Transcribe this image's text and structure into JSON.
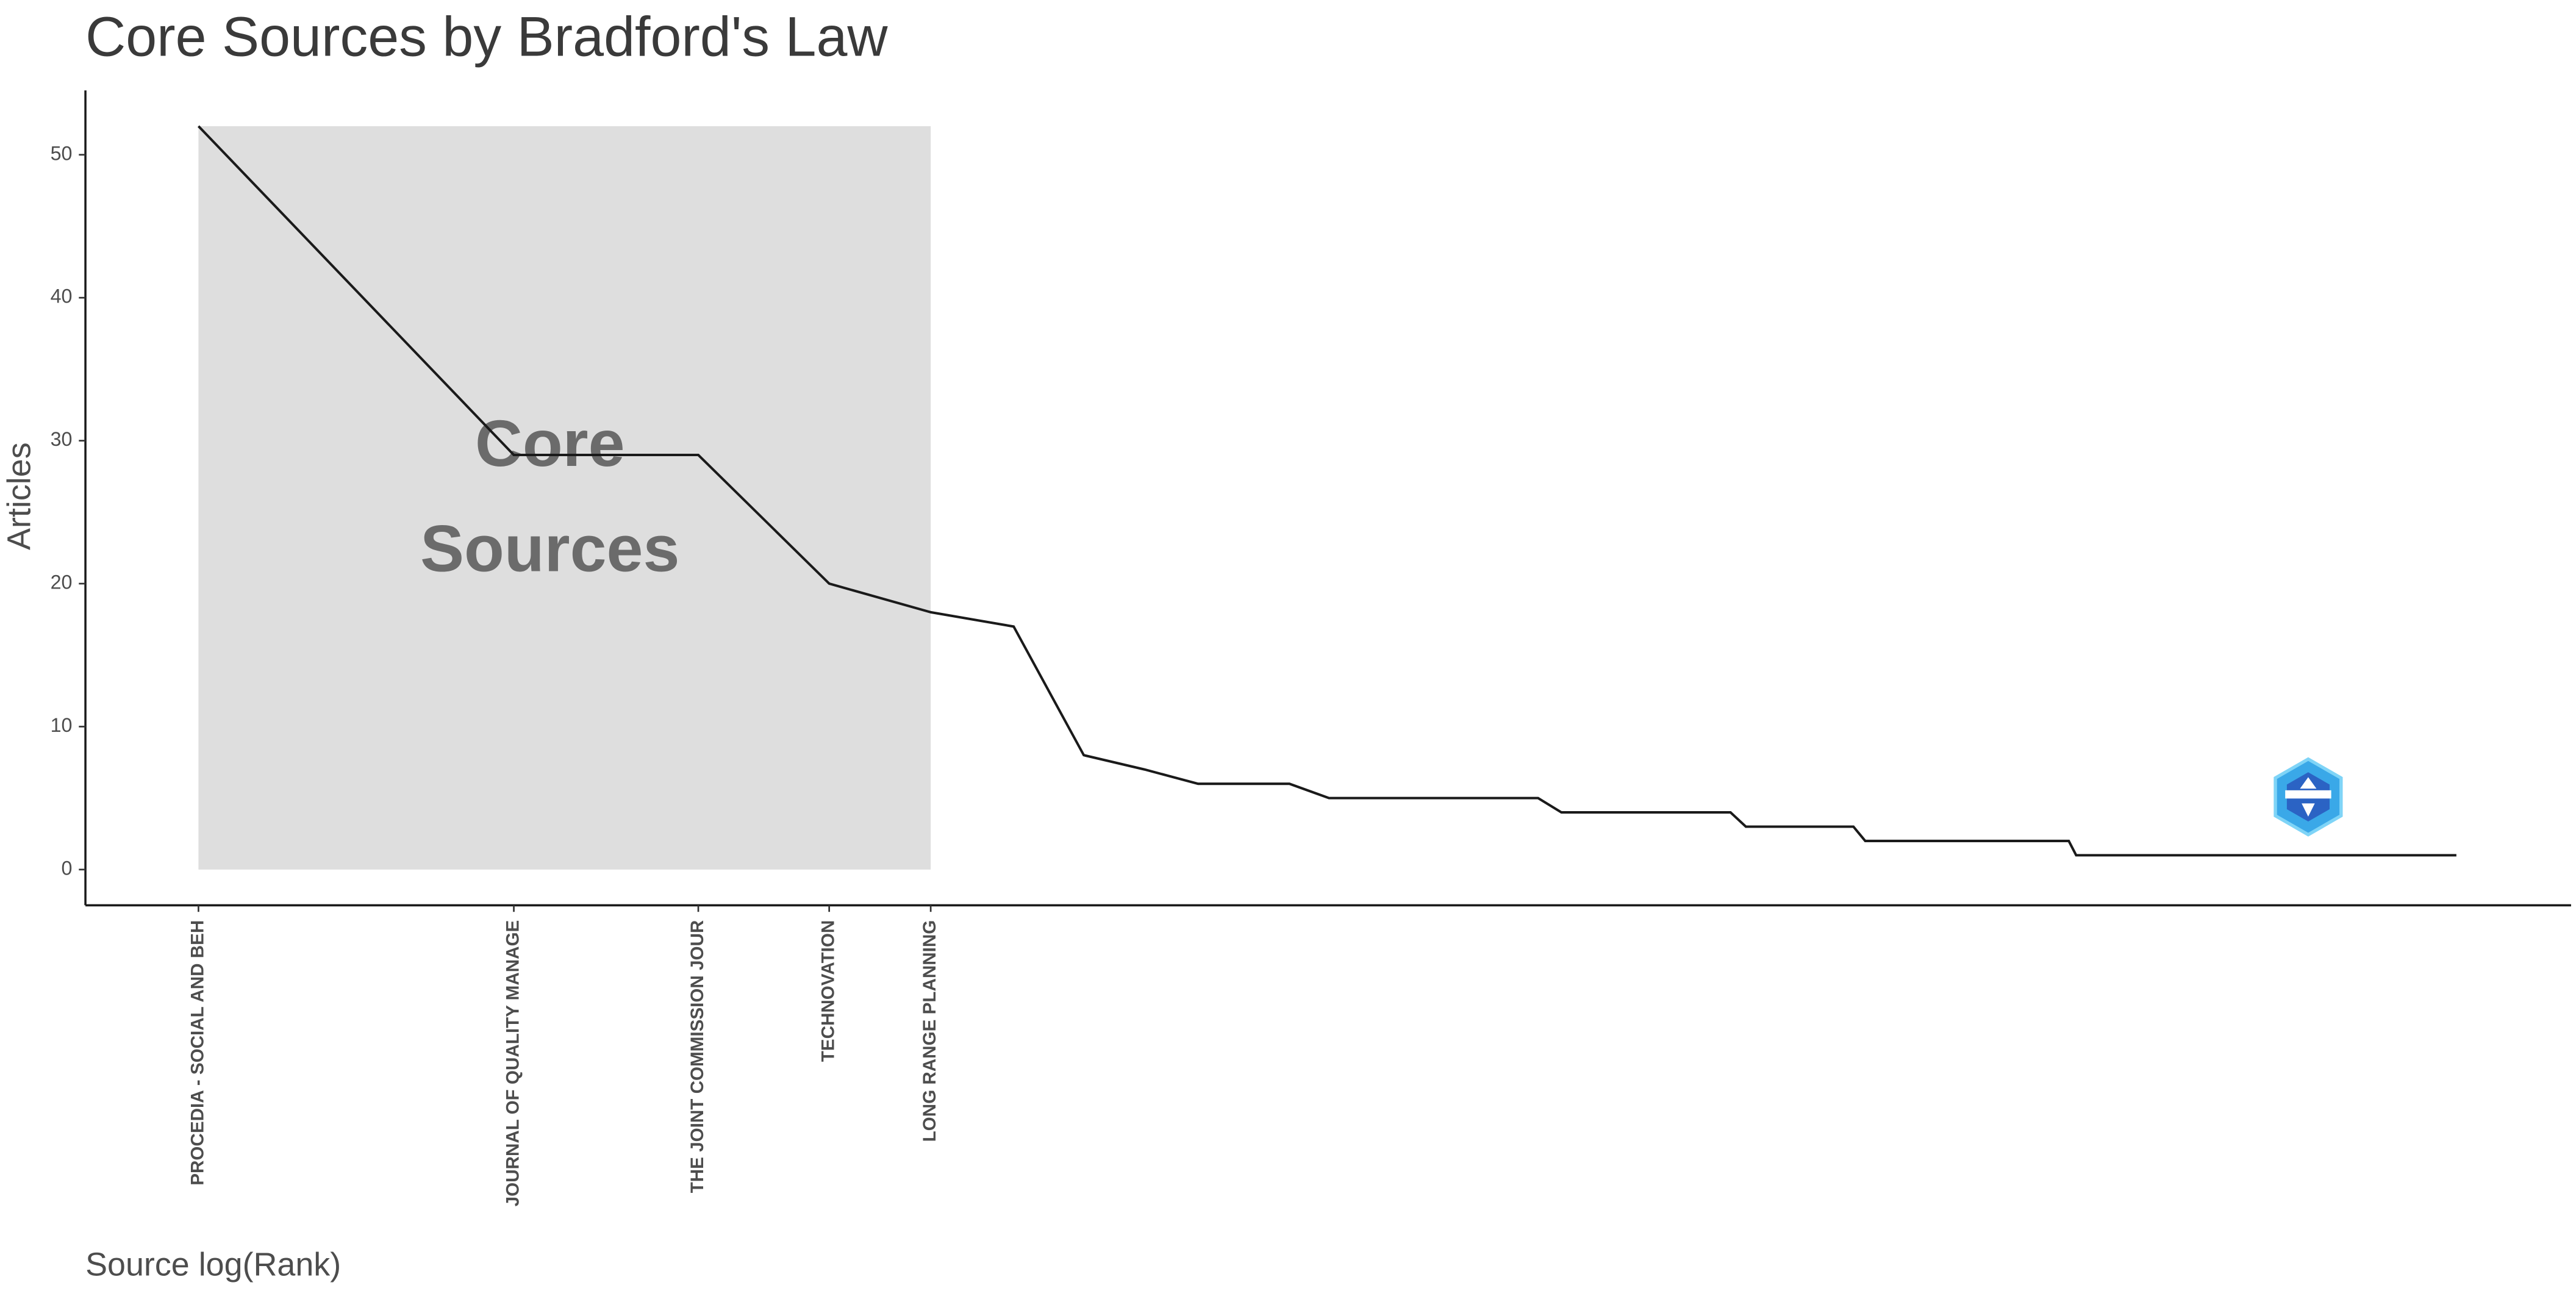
{
  "chart_data": {
    "type": "line",
    "title": "Core Sources by Bradford's Law",
    "xlabel": "Source log(Rank)",
    "ylabel": "Articles",
    "annotation": [
      "Core",
      "Sources"
    ],
    "xscale": "log",
    "x": [
      1,
      2,
      3,
      4,
      5,
      6,
      7,
      8,
      9,
      11,
      12,
      19,
      20,
      29,
      30,
      38,
      39,
      61,
      62,
      143
    ],
    "values": [
      52,
      29,
      29,
      20,
      18,
      17,
      8,
      7,
      6,
      6,
      5,
      5,
      4,
      4,
      3,
      3,
      2,
      2,
      1,
      1
    ],
    "color": "#1a1a1a",
    "shade_color": "#dedede",
    "xlim": [
      0.78,
      184
    ],
    "xticks": [
      {
        "value": 1,
        "label": "PROCEDIA - SOCIAL AND BEH"
      },
      {
        "value": 2,
        "label": "JOURNAL OF QUALITY MANAGE"
      },
      {
        "value": 3,
        "label": "THE JOINT COMMISSION JOUR"
      },
      {
        "value": 4,
        "label": "TECHNOVATION"
      },
      {
        "value": 5,
        "label": "LONG RANGE PLANNING"
      }
    ],
    "ylim": [
      -2.5,
      54.5
    ],
    "yticks": [
      0,
      10,
      20,
      30,
      40,
      50
    ],
    "grid": false
  }
}
